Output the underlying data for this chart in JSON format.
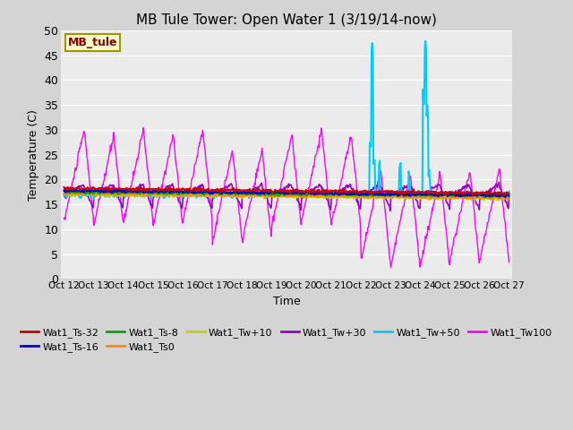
{
  "title": "MB Tule Tower: Open Water 1 (3/19/14-now)",
  "xlabel": "Time",
  "ylabel": "Temperature (C)",
  "ylim": [
    0,
    50
  ],
  "yticks": [
    0,
    5,
    10,
    15,
    20,
    25,
    30,
    35,
    40,
    45,
    50
  ],
  "bg_color": "#d4d4d4",
  "plot_bg_color": "#ebebeb",
  "legend_label": "MB_tule",
  "x_tick_labels": [
    "Oct 12",
    "Oct 13",
    "Oct 14",
    "Oct 15",
    "Oct 16",
    "Oct 17",
    "Oct 18",
    "Oct 19",
    "Oct 20",
    "Oct 21",
    "Oct 22",
    "Oct 23",
    "Oct 24",
    "Oct 25",
    "Oct 26",
    "Oct 27"
  ],
  "colors": {
    "Wat1_Ts-32": "#cc0000",
    "Wat1_Ts-16": "#0000cc",
    "Wat1_Ts-8": "#00aa00",
    "Wat1_Ts0": "#ff8800",
    "Wat1_Tw+10": "#cccc00",
    "Wat1_Tw+30": "#9900cc",
    "Wat1_Tw+50": "#00ccff",
    "Wat1_Tw100": "#ff00ff"
  }
}
